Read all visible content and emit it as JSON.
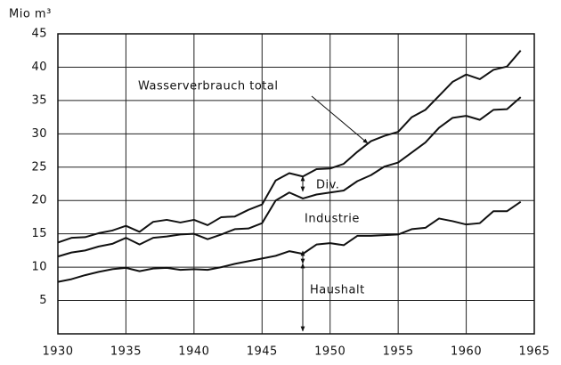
{
  "chart_data": {
    "type": "line",
    "stacked": true,
    "y_label": "Mio m³",
    "x": [
      1930,
      1931,
      1932,
      1933,
      1934,
      1935,
      1936,
      1937,
      1938,
      1939,
      1940,
      1941,
      1942,
      1943,
      1944,
      1945,
      1946,
      1947,
      1948,
      1949,
      1950,
      1951,
      1952,
      1953,
      1954,
      1955,
      1956,
      1957,
      1958,
      1959,
      1960,
      1961,
      1962,
      1963,
      1964
    ],
    "series": [
      {
        "name": "Haushalt",
        "color": "#111111",
        "values": [
          7.8,
          8.2,
          8.8,
          9.3,
          9.7,
          9.9,
          9.4,
          9.8,
          9.9,
          9.6,
          9.7,
          9.6,
          10.0,
          10.5,
          10.9,
          11.3,
          11.7,
          12.4,
          12.0,
          13.4,
          13.6,
          13.3,
          14.7,
          14.7,
          14.8,
          14.9,
          15.7,
          15.9,
          17.3,
          16.9,
          16.4,
          16.6,
          18.4,
          18.4,
          19.8
        ]
      },
      {
        "name": "Industrie",
        "color": "#111111",
        "values": [
          3.8,
          4.0,
          3.7,
          3.8,
          3.8,
          4.5,
          4.0,
          4.6,
          4.7,
          5.3,
          5.3,
          4.6,
          4.9,
          5.2,
          4.9,
          5.3,
          8.3,
          8.8,
          8.3,
          7.5,
          7.6,
          8.2,
          8.2,
          9.1,
          10.3,
          10.8,
          11.5,
          12.8,
          13.6,
          15.5,
          16.3,
          15.5,
          15.2,
          15.3,
          15.7
        ]
      },
      {
        "name": "Div.",
        "color": "#111111",
        "values": [
          2.1,
          2.2,
          2.0,
          2.0,
          2.0,
          1.8,
          1.9,
          2.4,
          2.5,
          1.8,
          2.1,
          2.1,
          2.6,
          1.9,
          2.8,
          2.8,
          3.0,
          2.9,
          3.3,
          3.8,
          3.6,
          4.0,
          4.4,
          5.1,
          4.6,
          4.6,
          5.3,
          4.9,
          4.8,
          5.4,
          6.2,
          6.1,
          6.0,
          6.4,
          7.0
        ]
      }
    ],
    "annotations": [
      "Wasserverbrauch total"
    ],
    "xlim": [
      1930,
      1965
    ],
    "ylim": [
      0,
      45
    ],
    "xticks": [
      1930,
      1935,
      1940,
      1945,
      1950,
      1955,
      1960,
      1965
    ],
    "yticks": [
      5,
      10,
      15,
      20,
      25,
      30,
      35,
      40,
      45
    ],
    "grid": true
  }
}
